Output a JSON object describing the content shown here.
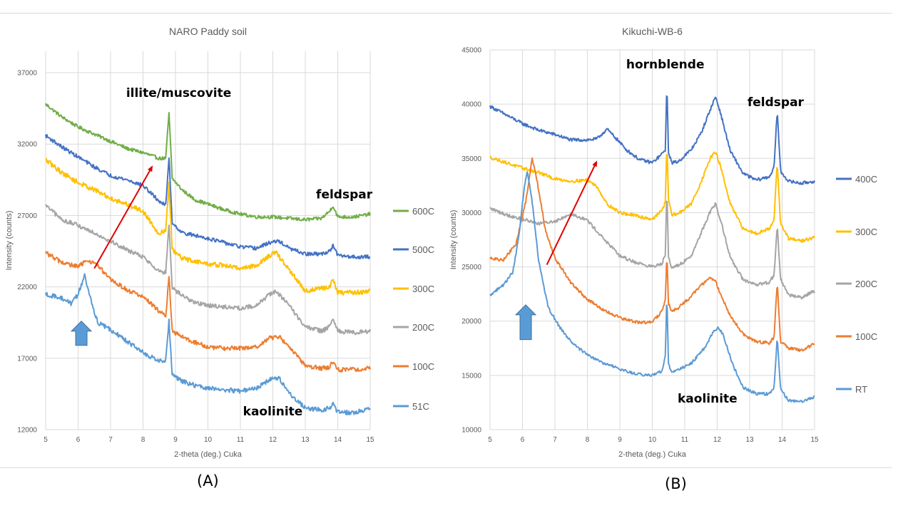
{
  "panel_labels": [
    "(A)",
    "(B)"
  ],
  "chart_data": [
    {
      "type": "line",
      "title": "NARO Paddy soil",
      "xlabel": "2-theta (deg.) Cuka",
      "ylabel": "Intensity (counts)",
      "xlim": [
        5,
        15
      ],
      "ylim": [
        12000,
        38500
      ],
      "xticks": [
        5,
        6,
        7,
        8,
        9,
        10,
        11,
        12,
        13,
        14,
        15
      ],
      "yticks": [
        12000,
        17000,
        22000,
        27000,
        32000,
        37000
      ],
      "grid": true,
      "legend_position": "right",
      "series": [
        {
          "name": "600C",
          "color": "#70ad47",
          "noise": 120,
          "x": [
            5,
            5.5,
            6,
            6.5,
            7,
            7.5,
            8,
            8.5,
            8.7,
            8.8,
            8.9,
            9.2,
            9.6,
            10,
            10.5,
            11,
            11.5,
            12,
            12.5,
            13,
            13.5,
            13.75,
            13.85,
            14,
            14.5,
            15
          ],
          "y": [
            34800,
            33900,
            33200,
            32700,
            32200,
            31700,
            31400,
            31000,
            31000,
            34200,
            29600,
            28800,
            28100,
            27800,
            27400,
            27100,
            26900,
            26900,
            26800,
            26700,
            26800,
            27300,
            27700,
            26900,
            26900,
            27100
          ]
        },
        {
          "name": "500C",
          "color": "#4472c4",
          "noise": 130,
          "x": [
            5,
            5.5,
            6,
            6.5,
            7,
            7.5,
            8,
            8.5,
            8.7,
            8.8,
            8.9,
            9.2,
            9.6,
            10,
            10.5,
            11,
            11.5,
            11.9,
            12.2,
            12.5,
            13,
            13.5,
            13.75,
            13.85,
            14,
            14.5,
            15
          ],
          "y": [
            32600,
            31800,
            31100,
            30400,
            29800,
            29500,
            29100,
            28000,
            27700,
            31100,
            26500,
            25800,
            25600,
            25400,
            25100,
            24800,
            24700,
            25100,
            25200,
            24700,
            24300,
            24300,
            24500,
            24900,
            24200,
            24100,
            24100
          ]
        },
        {
          "name": "300C",
          "color": "#ffc000",
          "noise": 170,
          "x": [
            5,
            5.5,
            6,
            6.5,
            7,
            7.5,
            8,
            8.5,
            8.7,
            8.8,
            8.9,
            9.2,
            9.6,
            10,
            10.5,
            11,
            11.5,
            11.9,
            12.1,
            12.5,
            13,
            13.5,
            13.75,
            13.85,
            14,
            14.5,
            15
          ],
          "y": [
            30900,
            30000,
            29300,
            28800,
            28200,
            27800,
            27300,
            25700,
            26000,
            29200,
            24600,
            24000,
            23800,
            23600,
            23500,
            23300,
            23500,
            24200,
            24400,
            23200,
            21700,
            21900,
            22000,
            22500,
            21600,
            21600,
            21700
          ]
        },
        {
          "name": "200C",
          "color": "#a5a5a5",
          "noise": 150,
          "x": [
            5,
            5.5,
            6,
            6.5,
            7,
            7.5,
            8,
            8.5,
            8.7,
            8.8,
            8.9,
            9.2,
            9.6,
            10,
            10.5,
            11,
            11.5,
            11.9,
            12.1,
            12.5,
            13,
            13.5,
            13.75,
            13.85,
            14,
            14.5,
            15
          ],
          "y": [
            27700,
            26700,
            26300,
            25800,
            25200,
            24600,
            24100,
            23100,
            23000,
            26300,
            21900,
            21400,
            20900,
            20700,
            20600,
            20500,
            20700,
            21500,
            21700,
            20700,
            19200,
            18900,
            19200,
            19800,
            18900,
            18800,
            18900
          ]
        },
        {
          "name": "100C",
          "color": "#ed7d31",
          "noise": 160,
          "x": [
            5,
            5.5,
            6,
            6.3,
            6.6,
            7,
            7.5,
            8,
            8.5,
            8.7,
            8.8,
            8.9,
            9.2,
            9.6,
            10,
            10.5,
            11,
            11.5,
            11.9,
            12.2,
            12.5,
            13,
            13.5,
            13.75,
            13.85,
            14,
            14.5,
            15
          ],
          "y": [
            24400,
            23700,
            23400,
            23900,
            23500,
            22500,
            21800,
            21300,
            20300,
            19900,
            22800,
            18900,
            18500,
            18100,
            17800,
            17700,
            17700,
            17800,
            18400,
            18500,
            17800,
            16500,
            16300,
            16400,
            16800,
            16200,
            16200,
            16300
          ]
        },
        {
          "name": "51C",
          "color": "#5b9bd5",
          "noise": 160,
          "x": [
            5,
            5.5,
            5.8,
            6,
            6.2,
            6.4,
            6.6,
            7,
            7.5,
            8,
            8.5,
            8.7,
            8.8,
            8.9,
            9.2,
            9.6,
            10,
            10.5,
            11,
            11.5,
            11.9,
            12.2,
            12.5,
            13,
            13.5,
            13.75,
            13.85,
            14,
            14.5,
            15
          ],
          "y": [
            21500,
            21200,
            20800,
            21500,
            22800,
            21000,
            19500,
            19000,
            18200,
            17400,
            16800,
            16900,
            19600,
            15800,
            15400,
            15100,
            14900,
            14800,
            14700,
            14900,
            15500,
            15600,
            14600,
            13500,
            13400,
            13500,
            13800,
            13200,
            13200,
            13500
          ]
        }
      ],
      "annotations": [
        {
          "text": "illite/muscovite",
          "x": 9.1,
          "y": 35300
        },
        {
          "text": "feldspar",
          "x": 14.2,
          "y": 28200
        },
        {
          "text": "kaolinite",
          "x": 12.0,
          "y": 13000
        }
      ],
      "arrows": [
        {
          "kind": "line",
          "color": "#e00000",
          "from": [
            6.5,
            23300
          ],
          "to": [
            8.3,
            30500
          ]
        },
        {
          "kind": "block",
          "color": "#5b9bd5",
          "x": 6.1,
          "from": 17900,
          "to": 19600
        }
      ]
    },
    {
      "type": "line",
      "title": "Kikuchi-WB-6",
      "xlabel": "2-theta (deg.) Cuka",
      "ylabel": "Intensity (counts)",
      "xlim": [
        5,
        15
      ],
      "ylim": [
        10000,
        45000
      ],
      "xticks": [
        5,
        6,
        7,
        8,
        9,
        10,
        11,
        12,
        13,
        14,
        15
      ],
      "yticks": [
        10000,
        15000,
        20000,
        25000,
        30000,
        35000,
        40000,
        45000
      ],
      "grid": true,
      "legend_position": "right",
      "series": [
        {
          "name": "400C",
          "color": "#4472c4",
          "noise": 150,
          "x": [
            5,
            5.5,
            6,
            6.5,
            7,
            7.5,
            8,
            8.3,
            8.6,
            8.9,
            9.2,
            9.6,
            10,
            10.3,
            10.4,
            10.45,
            10.5,
            10.6,
            10.8,
            11.2,
            11.5,
            11.8,
            11.95,
            12.1,
            12.4,
            12.8,
            13.2,
            13.6,
            13.75,
            13.85,
            13.95,
            14.2,
            14.6,
            15
          ],
          "y": [
            39800,
            39000,
            38200,
            37600,
            37200,
            36700,
            36700,
            36800,
            37700,
            36800,
            35800,
            34900,
            34600,
            35400,
            35800,
            41800,
            35600,
            34600,
            34700,
            35800,
            37300,
            39600,
            40700,
            39200,
            35700,
            33600,
            33000,
            33300,
            34100,
            39500,
            33800,
            32900,
            32700,
            32900
          ]
        },
        {
          "name": "300C",
          "color": "#ffc000",
          "noise": 150,
          "x": [
            5,
            5.5,
            6,
            6.5,
            7,
            7.5,
            8,
            8.3,
            8.6,
            9,
            9.5,
            10,
            10.3,
            10.4,
            10.45,
            10.5,
            10.6,
            10.8,
            11.2,
            11.5,
            11.8,
            11.95,
            12.1,
            12.4,
            12.8,
            13.2,
            13.6,
            13.75,
            13.85,
            13.95,
            14.2,
            14.6,
            15
          ],
          "y": [
            35100,
            34600,
            34100,
            33700,
            33100,
            32900,
            33000,
            32400,
            30800,
            30000,
            29700,
            29400,
            30200,
            31000,
            36500,
            31200,
            29800,
            29900,
            30800,
            32800,
            35100,
            35600,
            34300,
            30800,
            28500,
            28100,
            28500,
            29400,
            34600,
            29000,
            27600,
            27400,
            27700
          ]
        },
        {
          "name": "200C",
          "color": "#a5a5a5",
          "noise": 150,
          "x": [
            5,
            5.5,
            6,
            6.5,
            7,
            7.5,
            8,
            8.5,
            9,
            9.5,
            10,
            10.3,
            10.4,
            10.45,
            10.5,
            10.6,
            10.8,
            11.2,
            11.5,
            11.8,
            11.95,
            12.1,
            12.4,
            12.8,
            13.2,
            13.6,
            13.75,
            13.85,
            13.95,
            14.2,
            14.6,
            15
          ],
          "y": [
            30400,
            29800,
            29400,
            29000,
            29200,
            29900,
            29300,
            27600,
            26000,
            25400,
            25000,
            25300,
            26200,
            32300,
            25900,
            25000,
            25100,
            26000,
            28100,
            30200,
            30800,
            29400,
            25900,
            23800,
            23300,
            23600,
            24200,
            28800,
            23900,
            22400,
            22200,
            22800
          ]
        },
        {
          "name": "100C",
          "color": "#ed7d31",
          "noise": 140,
          "x": [
            5,
            5.4,
            5.8,
            6.1,
            6.3,
            6.45,
            6.7,
            7,
            7.5,
            8,
            8.5,
            9,
            9.5,
            10,
            10.3,
            10.4,
            10.45,
            10.5,
            10.6,
            10.8,
            11.2,
            11.5,
            11.8,
            11.95,
            12.1,
            12.4,
            12.8,
            13.2,
            13.6,
            13.75,
            13.85,
            13.95,
            14.2,
            14.6,
            15
          ],
          "y": [
            25800,
            25600,
            27100,
            31000,
            35000,
            33000,
            28500,
            25800,
            23500,
            22000,
            21000,
            20300,
            19900,
            19900,
            20900,
            22000,
            26200,
            21600,
            20900,
            21200,
            22300,
            23300,
            24000,
            23700,
            22500,
            20500,
            18800,
            18100,
            18000,
            18500,
            23600,
            18100,
            17500,
            17300,
            17900
          ]
        },
        {
          "name": "RT",
          "color": "#5b9bd5",
          "noise": 130,
          "x": [
            5,
            5.4,
            5.7,
            5.9,
            6.05,
            6.15,
            6.3,
            6.5,
            6.8,
            7.2,
            7.6,
            8,
            8.5,
            9,
            9.5,
            10,
            10.3,
            10.4,
            10.45,
            10.5,
            10.6,
            10.8,
            11.2,
            11.6,
            11.9,
            12.05,
            12.2,
            12.5,
            12.8,
            13.2,
            13.6,
            13.75,
            13.85,
            13.95,
            14.2,
            14.6,
            15
          ],
          "y": [
            22400,
            23300,
            24500,
            28000,
            32200,
            33800,
            31000,
            25500,
            21200,
            19200,
            17800,
            16900,
            16100,
            15600,
            15100,
            15000,
            15400,
            16700,
            22600,
            16000,
            15300,
            15500,
            16100,
            17500,
            19100,
            19400,
            18600,
            15800,
            13900,
            13300,
            13300,
            13800,
            18500,
            13700,
            12700,
            12600,
            13000
          ]
        }
      ],
      "annotations": [
        {
          "text": "hornblende",
          "x": 10.4,
          "y": 43300
        },
        {
          "text": "feldspar",
          "x": 13.8,
          "y": 39800
        },
        {
          "text": "kaolinite",
          "x": 11.7,
          "y": 12500
        }
      ],
      "arrows": [
        {
          "kind": "line",
          "color": "#e00000",
          "from": [
            6.75,
            25200
          ],
          "to": [
            8.3,
            34800
          ]
        },
        {
          "kind": "block",
          "color": "#5b9bd5",
          "x": 6.1,
          "from": 18300,
          "to": 21500
        }
      ]
    }
  ]
}
